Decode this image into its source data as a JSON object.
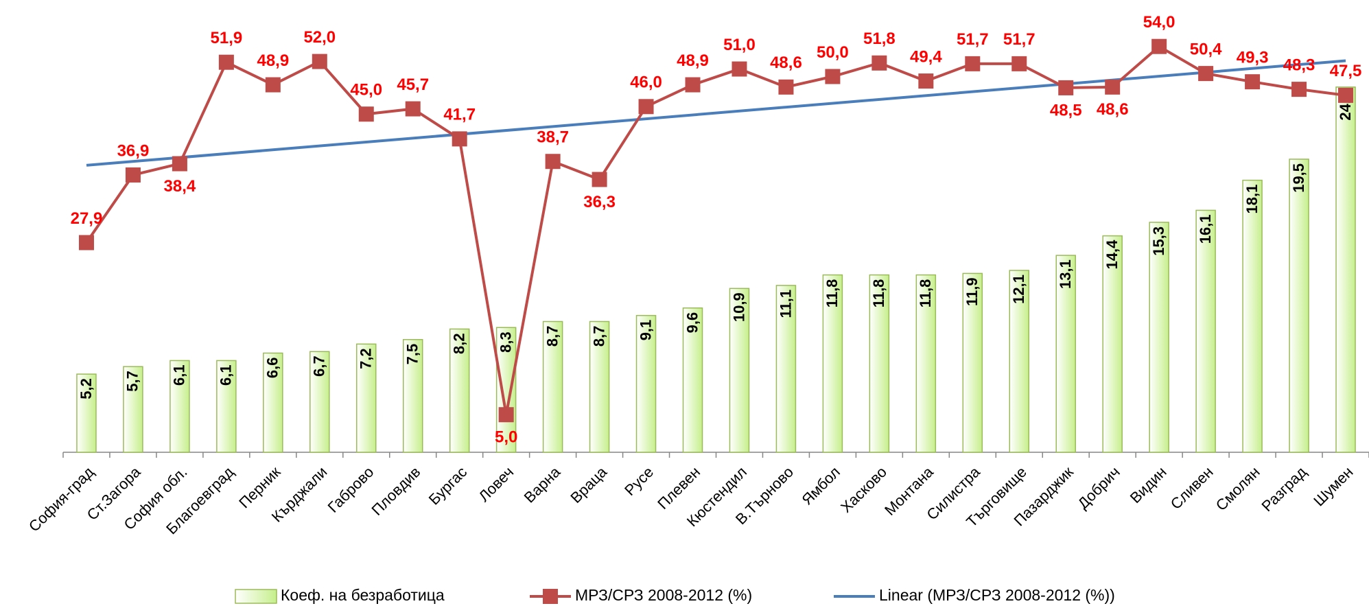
{
  "chart_data": {
    "type": "bar",
    "categories": [
      "София-град",
      "Ст.Загора",
      "София обл.",
      "Благоевград",
      "Перник",
      "Кърджали",
      "Габрово",
      "Пловдив",
      "Бургас",
      "Ловеч",
      "Варна",
      "Враца",
      "Русе",
      "Плевен",
      "Кюстендил",
      "В.Търново",
      "Ямбол",
      "Хасково",
      "Монтана",
      "Силистра",
      "Търговище",
      "Пазарджик",
      "Добрич",
      "Видин",
      "Сливен",
      "Смолян",
      "Разград",
      "Шумен"
    ],
    "ylim": [
      0,
      30
    ],
    "y2lim": [
      0,
      60
    ],
    "series": [
      {
        "name": "Коеф. на безработица",
        "type": "bar",
        "color": "#c6ef8c",
        "values": [
          5.2,
          5.7,
          6.1,
          6.1,
          6.6,
          6.7,
          7.2,
          7.5,
          8.2,
          8.3,
          8.7,
          8.7,
          9.1,
          9.6,
          10.9,
          11.1,
          11.8,
          11.8,
          11.8,
          11.9,
          12.1,
          13.1,
          14.4,
          15.3,
          16.1,
          18.1,
          19.5,
          24.3
        ],
        "value_labels": [
          "5,2",
          "5,7",
          "6,1",
          "6,1",
          "6,6",
          "6,7",
          "7,2",
          "7,5",
          "8,2",
          "8,3",
          "8,7",
          "8,7",
          "9,1",
          "9,6",
          "10,9",
          "11,1",
          "11,8",
          "11,8",
          "11,8",
          "11,9",
          "12,1",
          "13,1",
          "14,4",
          "15,3",
          "16,1",
          "18,1",
          "19,5",
          "24,3"
        ]
      },
      {
        "name": "МРЗ/СРЗ 2008-2012 (%)",
        "type": "line",
        "axis": "y2",
        "color": "#be4b48",
        "values": [
          27.9,
          36.9,
          38.4,
          51.9,
          48.9,
          52.0,
          45.0,
          45.7,
          41.7,
          5.0,
          38.7,
          36.3,
          46.0,
          48.9,
          51.0,
          48.6,
          50.0,
          51.8,
          49.4,
          51.7,
          51.7,
          48.5,
          48.6,
          54.0,
          50.4,
          49.3,
          48.3,
          47.5
        ],
        "value_labels": [
          "27,9",
          "36,9",
          "38,4",
          "51,9",
          "48,9",
          "52,0",
          "45,0",
          "45,7",
          "41,7",
          "5,0",
          "38,7",
          "36,3",
          "46,0",
          "48,9",
          "51,0",
          "48,6",
          "50,0",
          "51,8",
          "49,4",
          "51,7",
          "51,7",
          "48,5",
          "48,6",
          "54,0",
          "50,4",
          "49,3",
          "48,3",
          "47,5"
        ]
      },
      {
        "name": "Linear (МРЗ/СРЗ 2008-2012 (%))",
        "type": "trend",
        "axis": "y2",
        "color": "#4a7ebb"
      }
    ]
  }
}
